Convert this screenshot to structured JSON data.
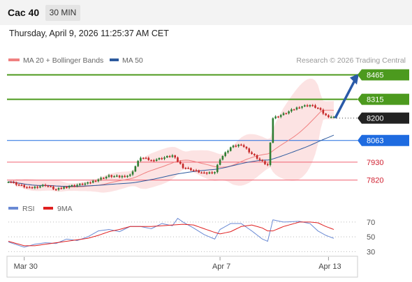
{
  "header": {
    "instrument": "Cac 40",
    "timeframe": "30 MIN",
    "datetime": "Thursday, April 9, 2026 11:25:37 AM CET"
  },
  "colors": {
    "ma20": "#f08080",
    "ma50": "#2d5a9e",
    "resistance": "#4c9a1e",
    "pivot": "#1e6be0",
    "support": "#f06070",
    "price_tag": "#222222",
    "arrow": "#2a5aa8",
    "rsi": "#6a8ad4",
    "rsi_ma": "#e02020",
    "bull": "#2e7d32",
    "bear": "#c62828"
  },
  "chart_data": [
    {
      "type": "candlestick",
      "legend": [
        {
          "name": "MA 20 + Bollinger Bands",
          "color": "#f08080"
        },
        {
          "name": "MA 50",
          "color": "#2d5a9e"
        }
      ],
      "credit": "Research © 2026 Trading Central",
      "ylim": [
        7720,
        8540
      ],
      "x_ticks": [
        {
          "label": "Mar 30",
          "index": 6
        },
        {
          "label": "Apr 7",
          "index": 80
        },
        {
          "label": "Apr 13",
          "index": 121
        }
      ],
      "levels": [
        {
          "label": "8465",
          "value": 8465,
          "kind": "resistance"
        },
        {
          "label": "8315",
          "value": 8315,
          "kind": "resistance"
        },
        {
          "label": "8200",
          "value": 8200,
          "kind": "last_price"
        },
        {
          "label": "8063",
          "value": 8063,
          "kind": "pivot"
        },
        {
          "label": "7930",
          "value": 7930,
          "kind": "support"
        },
        {
          "label": "7820",
          "value": 7820,
          "kind": "support"
        }
      ],
      "arrow": {
        "from_value": 8200,
        "to_value": 8465
      },
      "close_anchors": [
        [
          0,
          7815
        ],
        [
          4,
          7790
        ],
        [
          8,
          7770
        ],
        [
          14,
          7790
        ],
        [
          18,
          7760
        ],
        [
          22,
          7780
        ],
        [
          26,
          7790
        ],
        [
          30,
          7800
        ],
        [
          34,
          7825
        ],
        [
          38,
          7845
        ],
        [
          42,
          7840
        ],
        [
          46,
          7850
        ],
        [
          50,
          7960
        ],
        [
          54,
          7940
        ],
        [
          58,
          7955
        ],
        [
          62,
          7970
        ],
        [
          66,
          7900
        ],
        [
          70,
          7880
        ],
        [
          74,
          7860
        ],
        [
          78,
          7870
        ],
        [
          80,
          7950
        ],
        [
          84,
          8020
        ],
        [
          88,
          8040
        ],
        [
          92,
          7980
        ],
        [
          96,
          7930
        ],
        [
          98,
          7910
        ],
        [
          100,
          8200
        ],
        [
          104,
          8225
        ],
        [
          110,
          8270
        ],
        [
          114,
          8280
        ],
        [
          117,
          8260
        ],
        [
          120,
          8215
        ],
        [
          123,
          8205
        ]
      ]
    },
    {
      "type": "line",
      "legend": [
        {
          "name": "RSI",
          "color": "#6a8ad4"
        },
        {
          "name": "9MA",
          "color": "#e02020"
        }
      ],
      "ylim": [
        20,
        85
      ],
      "y_ticks": [
        70,
        50,
        30
      ],
      "series": [
        {
          "name": "RSI",
          "anchors": [
            [
              0,
              43
            ],
            [
              6,
              36
            ],
            [
              10,
              40
            ],
            [
              14,
              42
            ],
            [
              18,
              41
            ],
            [
              22,
              47
            ],
            [
              26,
              45
            ],
            [
              30,
              50
            ],
            [
              34,
              58
            ],
            [
              38,
              60
            ],
            [
              42,
              57
            ],
            [
              46,
              64
            ],
            [
              50,
              64
            ],
            [
              54,
              61
            ],
            [
              58,
              68
            ],
            [
              62,
              65
            ],
            [
              64,
              75
            ],
            [
              66,
              70
            ],
            [
              70,
              62
            ],
            [
              74,
              53
            ],
            [
              78,
              47
            ],
            [
              80,
              60
            ],
            [
              84,
              68
            ],
            [
              88,
              68
            ],
            [
              92,
              58
            ],
            [
              96,
              47
            ],
            [
              98,
              44
            ],
            [
              100,
              73
            ],
            [
              104,
              70
            ],
            [
              110,
              71
            ],
            [
              114,
              68
            ],
            [
              117,
              58
            ],
            [
              120,
              52
            ],
            [
              123,
              48
            ]
          ]
        },
        {
          "name": "9MA",
          "anchors": [
            [
              0,
              44
            ],
            [
              6,
              38
            ],
            [
              10,
              38
            ],
            [
              14,
              40
            ],
            [
              18,
              42
            ],
            [
              22,
              44
            ],
            [
              26,
              46
            ],
            [
              30,
              48
            ],
            [
              34,
              52
            ],
            [
              38,
              57
            ],
            [
              42,
              60
            ],
            [
              46,
              64
            ],
            [
              50,
              64
            ],
            [
              54,
              64
            ],
            [
              58,
              65
            ],
            [
              62,
              66
            ],
            [
              66,
              67
            ],
            [
              70,
              66
            ],
            [
              74,
              61
            ],
            [
              78,
              56
            ],
            [
              80,
              54
            ],
            [
              84,
              57
            ],
            [
              88,
              64
            ],
            [
              92,
              66
            ],
            [
              96,
              62
            ],
            [
              98,
              58
            ],
            [
              100,
              58
            ],
            [
              104,
              64
            ],
            [
              110,
              70
            ],
            [
              114,
              70
            ],
            [
              117,
              69
            ],
            [
              120,
              64
            ],
            [
              123,
              60
            ]
          ]
        }
      ]
    }
  ]
}
